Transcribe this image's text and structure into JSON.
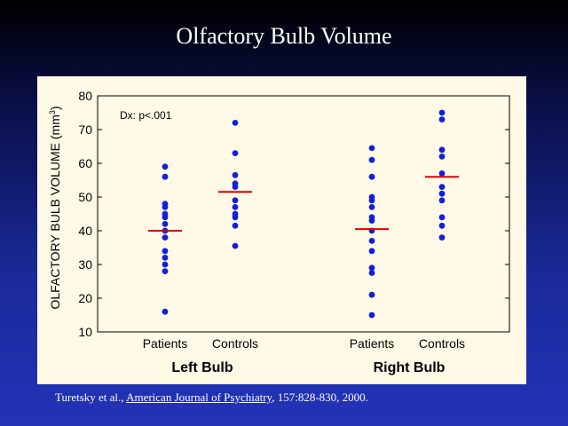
{
  "slide": {
    "title": "Olfactory Bulb Volume"
  },
  "citation": {
    "authors": "Turetsky et al., ",
    "journal": "American Journal of Psychiatry",
    "details": ", 157:828-830, 2000."
  },
  "chart_data": {
    "type": "scatter",
    "ylabel": "OLFACTORY BULB VOLUME (mm",
    "ylabel_superscript": "3",
    "ylabel_close": ")",
    "ylim": [
      10,
      80
    ],
    "yticks": [
      10,
      20,
      30,
      40,
      50,
      60,
      70,
      80
    ],
    "annotation": "Dx: p<.001",
    "groups": [
      {
        "name": "Left Bulb",
        "categories": [
          {
            "name": "Patients",
            "mean": 40,
            "values": [
              59,
              56,
              48,
              47,
              45,
              44,
              42,
              40,
              38,
              34,
              32,
              30,
              28,
              16
            ]
          },
          {
            "name": "Controls",
            "mean": 51.5,
            "values": [
              72,
              63,
              56.5,
              54,
              53,
              49,
              47,
              45,
              44,
              41.5,
              35.5
            ]
          }
        ]
      },
      {
        "name": "Right Bulb",
        "categories": [
          {
            "name": "Patients",
            "mean": 40.5,
            "values": [
              64.5,
              61,
              56,
              50,
              49,
              47,
              44,
              43,
              40,
              37,
              34,
              29,
              27.5,
              21,
              15
            ]
          },
          {
            "name": "Controls",
            "mean": 56,
            "values": [
              75,
              73,
              64,
              62,
              57,
              53,
              51,
              49,
              44,
              41.5,
              38
            ]
          }
        ]
      }
    ],
    "colors": {
      "point": "#1020d8",
      "mean_line": "#e00000",
      "panel": "#fff9e6"
    }
  }
}
